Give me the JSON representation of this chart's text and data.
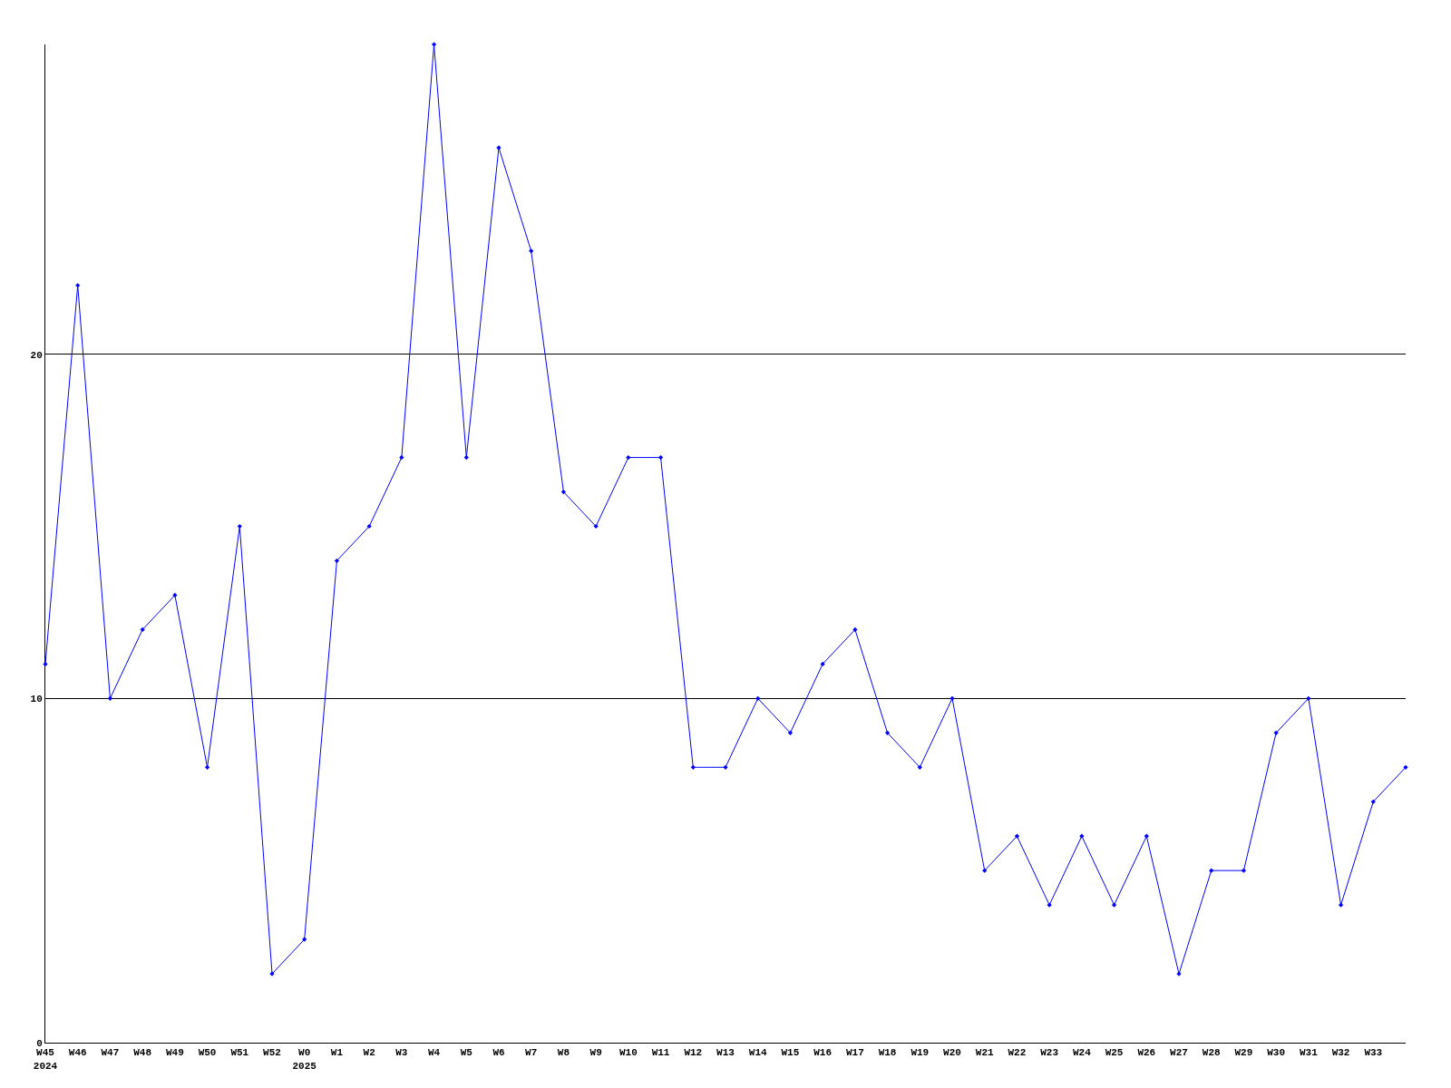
{
  "chart_data": {
    "type": "line",
    "categories": [
      "W45\n2024",
      "W46",
      "W47",
      "W48",
      "W49",
      "W50",
      "W51",
      "W52",
      "W0\n2025",
      "W1",
      "W2",
      "W3",
      "W4",
      "W5",
      "W6",
      "W7",
      "W8",
      "W9",
      "W10",
      "W11",
      "W12",
      "W13",
      "W14",
      "W15",
      "W16",
      "W17",
      "W18",
      "W19",
      "W20",
      "W21",
      "W22",
      "W23",
      "W24",
      "W25",
      "W26",
      "W27",
      "W28",
      "W29",
      "W30",
      "W31",
      "W32",
      "W33",
      null
    ],
    "series": [
      {
        "color": "#0000ff",
        "values": [
          11,
          22,
          10,
          12,
          13,
          8,
          15,
          2,
          3,
          14,
          15,
          17,
          29,
          17,
          26,
          23,
          16,
          15,
          17,
          17,
          8,
          8,
          10,
          9,
          11,
          12,
          9,
          8,
          10,
          5,
          6,
          4,
          6,
          4,
          6,
          2,
          5,
          5,
          9,
          10,
          4,
          7,
          8
        ]
      }
    ],
    "ylim": [
      0,
      29
    ],
    "yticks": [
      0,
      10,
      20
    ],
    "grid": "y",
    "marker": "diamond",
    "line_style": "solid"
  }
}
